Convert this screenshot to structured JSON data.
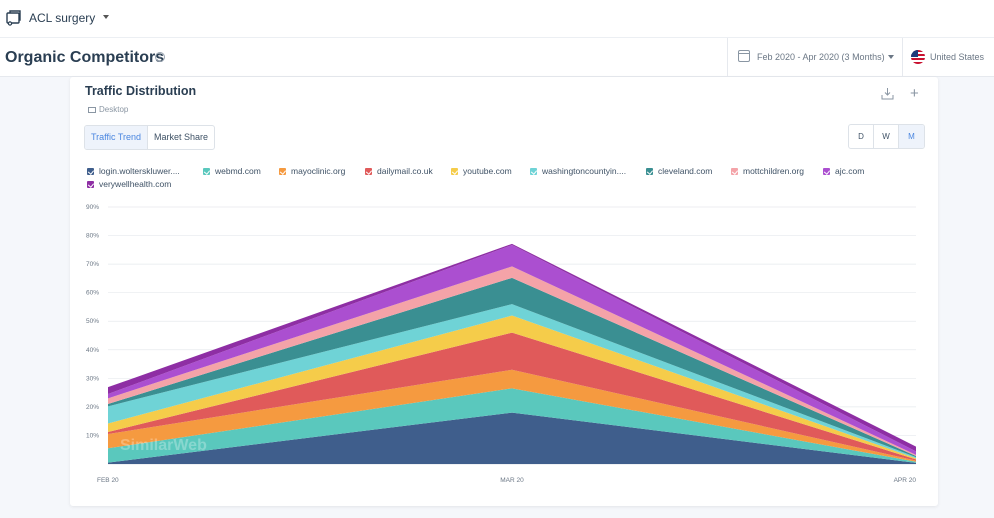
{
  "topbar": {
    "project_name": "ACL surgery"
  },
  "header": {
    "title": "Organic Competitors",
    "info": "i",
    "date_range": "Feb 2020 - Apr 2020 (3 Months)",
    "country": "United States"
  },
  "card": {
    "title": "Traffic Distribution",
    "device": "Desktop",
    "tabs": [
      "Traffic Trend",
      "Market Share"
    ],
    "granularity": [
      "D",
      "W",
      "M"
    ],
    "plus": "+"
  },
  "colors": {
    "accent": "#4a86e0",
    "series": [
      "#3f5e8c",
      "#5ac8bd",
      "#f59a40",
      "#e05a5a",
      "#f5cc4a",
      "#6fd3d6",
      "#3a8f92",
      "#f4a3a8",
      "#ab4fd0",
      "#8e2ea4"
    ]
  },
  "chart_data": {
    "type": "area",
    "stacked": true,
    "title": "Traffic Distribution",
    "x": [
      "FEB 20",
      "MAR 20",
      "APR 20"
    ],
    "y_ticks": [
      "10%",
      "20%",
      "30%",
      "40%",
      "50%",
      "60%",
      "70%",
      "80%",
      "90%"
    ],
    "ylim": [
      0,
      90
    ],
    "grid": true,
    "watermark": "SimilarWeb",
    "series": [
      {
        "name": "login.wolterskluwer....",
        "values": [
          0.5,
          18,
          0.4
        ]
      },
      {
        "name": "webmd.com",
        "values": [
          5,
          8.5,
          0.4
        ]
      },
      {
        "name": "mayoclinic.org",
        "values": [
          5,
          6.5,
          0.4
        ]
      },
      {
        "name": "dailymail.co.uk",
        "values": [
          0.7,
          13,
          0.4
        ]
      },
      {
        "name": "youtube.com",
        "values": [
          3,
          6,
          0.4
        ]
      },
      {
        "name": "washingtoncountyin....",
        "values": [
          6,
          4,
          0.4
        ]
      },
      {
        "name": "cleveland.com",
        "values": [
          0.8,
          9.2,
          0.4
        ]
      },
      {
        "name": "mottchildren.org",
        "values": [
          2,
          4,
          0.4
        ]
      },
      {
        "name": "ajc.com",
        "values": [
          1.5,
          7.5,
          1.2
        ]
      },
      {
        "name": "verywellhealth.com",
        "values": [
          2.4,
          0.4,
          1.7
        ]
      }
    ]
  }
}
